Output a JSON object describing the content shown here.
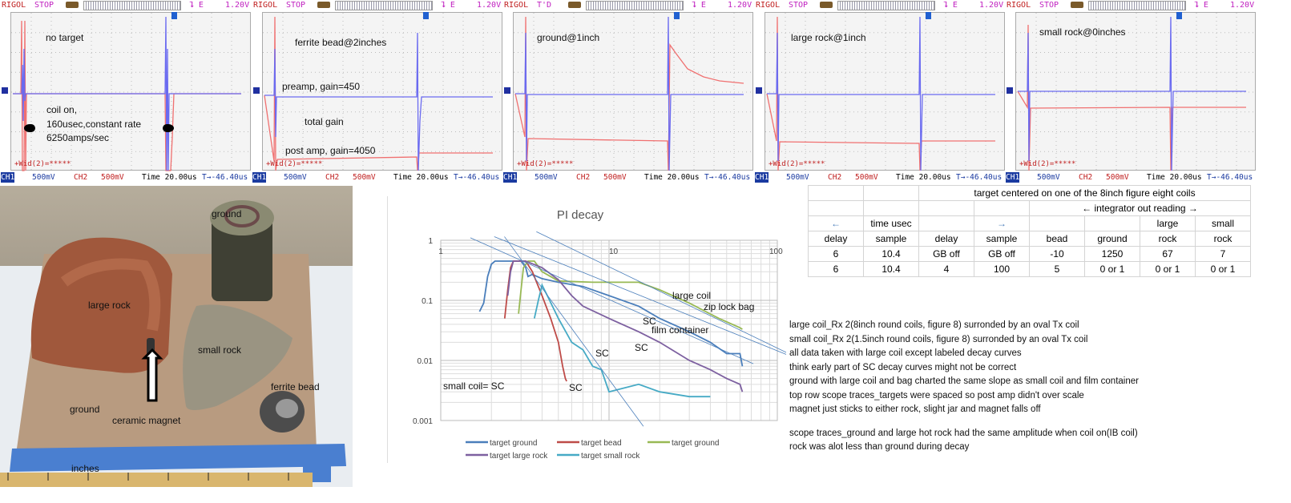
{
  "scopes": [
    {
      "brand": "RIGOL",
      "mode": "STOP",
      "trigger": "⮧ E",
      "volt": "1.20V",
      "notes": [
        "no target",
        "coil on,",
        "160usec,constant rate",
        "6250amps/sec"
      ],
      "wid": "+Wid(2)=*****",
      "ch1": "CH1",
      "ch1_scale": "500mV",
      "ch2": "CH2",
      "ch2_scale": "500mV",
      "time": "Time 20.00us",
      "offset": "T→-46.40us"
    },
    {
      "brand": "RIGOL",
      "mode": "STOP",
      "trigger": "⮧ E",
      "volt": "1.20V",
      "notes": [
        "ferrite bead@2inches",
        "preamp, gain=450",
        "total gain",
        "post amp, gain=4050"
      ],
      "wid": "+Wid(2)=*****",
      "ch1": "CH1",
      "ch1_scale": "500mV",
      "ch2": "CH2",
      "ch2_scale": "500mV",
      "time": "Time 20.00us",
      "offset": "T→-46.40us"
    },
    {
      "brand": "RIGOL",
      "mode": "T'D",
      "trigger": "⮧ E",
      "volt": "1.20V",
      "notes": [
        "ground@1inch"
      ],
      "wid": "+Wid(2)=*****",
      "ch1": "CH1",
      "ch1_scale": "500mV",
      "ch2": "CH2",
      "ch2_scale": "500mV",
      "time": "Time 20.00us",
      "offset": "T→-46.40us"
    },
    {
      "brand": "RIGOL",
      "mode": "STOP",
      "trigger": "⮧ E",
      "volt": "1.20V",
      "notes": [
        "large rock@1inch"
      ],
      "wid": "+Wid(2)=*****",
      "ch1": "CH1",
      "ch1_scale": "500mV",
      "ch2": "CH2",
      "ch2_scale": "500mV",
      "time": "Time 20.00us",
      "offset": "T→-46.40us"
    },
    {
      "brand": "RIGOL",
      "mode": "STOP",
      "trigger": "⮧ E",
      "volt": "1.20V",
      "notes": [
        "small rock@0inches"
      ],
      "wid": "+Wid(2)=*****",
      "ch1": "CH1",
      "ch1_scale": "500mV",
      "ch2": "CH2",
      "ch2_scale": "500mV",
      "time": "Time 20.00us",
      "offset": "T→-46.40us"
    }
  ],
  "photo": {
    "labels": [
      "ground",
      "large rock",
      "small rock",
      "ferrite bead",
      "ground",
      "ceramic magnet",
      "inches"
    ]
  },
  "chart_data": {
    "type": "line",
    "title": "PI decay",
    "xscale": "log",
    "yscale": "log",
    "xlim": [
      1,
      100
    ],
    "ylim": [
      0.001,
      1
    ],
    "xticks": [
      "1",
      "10",
      "100"
    ],
    "yticks": [
      "1",
      "0.1",
      "0.01",
      "0.001"
    ],
    "grid": true,
    "legend_position": "bottom",
    "series": [
      {
        "name": "target ground",
        "color": "#4a7ebb",
        "points": [
          [
            1.7,
            0.065
          ],
          [
            1.8,
            0.09
          ],
          [
            1.9,
            0.25
          ],
          [
            2,
            0.4
          ],
          [
            2.1,
            0.45
          ],
          [
            3,
            0.45
          ],
          [
            3.2,
            0.35
          ],
          [
            3.3,
            0.25
          ],
          [
            3.5,
            0.27
          ],
          [
            4,
            0.23
          ],
          [
            5,
            0.2
          ],
          [
            7,
            0.17
          ],
          [
            10,
            0.12
          ],
          [
            15,
            0.08
          ],
          [
            20,
            0.05
          ],
          [
            30,
            0.03
          ],
          [
            40,
            0.02
          ],
          [
            50,
            0.013
          ],
          [
            60,
            0.013
          ],
          [
            62,
            0.008
          ]
        ]
      },
      {
        "name": "target bead",
        "color": "#be4b48",
        "points": [
          [
            2.4,
            0.05
          ],
          [
            2.5,
            0.15
          ],
          [
            2.6,
            0.35
          ],
          [
            2.7,
            0.45
          ],
          [
            3.2,
            0.45
          ],
          [
            3.5,
            0.3
          ],
          [
            4,
            0.12
          ],
          [
            4.5,
            0.05
          ],
          [
            5,
            0.02
          ],
          [
            5.3,
            0.008
          ],
          [
            5.5,
            0.005
          ],
          [
            5.6,
            0.0045
          ]
        ]
      },
      {
        "name": "target ground",
        "color": "#98b954",
        "points": [
          [
            2.9,
            0.06
          ],
          [
            3,
            0.15
          ],
          [
            3.1,
            0.35
          ],
          [
            3.3,
            0.45
          ],
          [
            3.6,
            0.45
          ],
          [
            4,
            0.3
          ],
          [
            5,
            0.21
          ],
          [
            8,
            0.2
          ],
          [
            15,
            0.2
          ],
          [
            20,
            0.15
          ],
          [
            30,
            0.09
          ],
          [
            45,
            0.05
          ],
          [
            60,
            0.035
          ],
          [
            62,
            0.033
          ]
        ]
      },
      {
        "name": "target large rock",
        "color": "#7d60a0",
        "points": [
          [
            2.5,
            0.12
          ],
          [
            2.6,
            0.3
          ],
          [
            2.7,
            0.45
          ],
          [
            3.2,
            0.45
          ],
          [
            4,
            0.35
          ],
          [
            5,
            0.22
          ],
          [
            6,
            0.12
          ],
          [
            7,
            0.08
          ],
          [
            10,
            0.05
          ],
          [
            15,
            0.03
          ],
          [
            20,
            0.02
          ],
          [
            30,
            0.01
          ],
          [
            40,
            0.007
          ],
          [
            50,
            0.005
          ],
          [
            60,
            0.004
          ],
          [
            62,
            0.003
          ]
        ]
      },
      {
        "name": "target small rock",
        "color": "#46aac5",
        "points": [
          [
            3.6,
            0.05
          ],
          [
            3.8,
            0.1
          ],
          [
            4,
            0.18
          ],
          [
            4.3,
            0.12
          ],
          [
            5,
            0.05
          ],
          [
            6,
            0.02
          ],
          [
            7,
            0.015
          ],
          [
            8,
            0.008
          ],
          [
            9,
            0.007
          ],
          [
            10,
            0.003
          ],
          [
            15,
            0.004
          ],
          [
            20,
            0.003
          ],
          [
            30,
            0.0025
          ],
          [
            40,
            0.0025
          ]
        ]
      }
    ],
    "trendlines": [
      [
        [
          1.5,
          1.1
        ],
        [
          72,
          0.0088
        ]
      ],
      [
        [
          2.08,
          1.15
        ],
        [
          113,
          0.0126
        ]
      ],
      [
        [
          2.39,
          1.15
        ],
        [
          16,
          0.0008
        ]
      ],
      [
        [
          3.7,
          1.39
        ],
        [
          113,
          0.0136
        ]
      ]
    ],
    "annotations": [
      "large coil",
      "zip lock bag",
      "SC",
      "film container",
      "SC",
      "SC",
      "small coil= SC",
      "SC"
    ]
  },
  "table": {
    "rows": [
      [
        "",
        "",
        "target centered on one of the 8inch figure eight coils"
      ],
      [
        "",
        "",
        "",
        "",
        "← integrator out reading →"
      ],
      [
        "←",
        "time usec",
        "",
        "→",
        "",
        "",
        "large",
        "small"
      ],
      [
        "delay",
        "sample",
        "delay",
        "sample",
        "bead",
        "ground",
        "rock",
        "rock"
      ],
      [
        "6",
        "10.4",
        "GB off",
        "GB off",
        "-10",
        "1250",
        "67",
        "7"
      ],
      [
        "6",
        "10.4",
        "4",
        "100",
        "5",
        "0 or 1",
        "0 or 1",
        "0 or 1"
      ]
    ]
  },
  "notes": [
    "large coil_Rx 2(8inch round coils, figure 8) surronded by an oval Tx coil",
    "small coil_Rx 2(1.5inch round coils, figure 8) surronded by an oval Tx coil",
    "all data taken with large coil except labeled decay curves",
    "think early part of SC decay curves might not be correct",
    "ground with large coil and bag charted the same slope as small coil and film container",
    "top row scope traces_targets were spaced so post amp didn't over scale",
    "magnet just sticks to either rock, slight jar and magnet falls off",
    "",
    "scope traces_ground and large hot rock had the same amplitude when coil on(IB coil)",
    "rock was alot less than ground during decay"
  ]
}
